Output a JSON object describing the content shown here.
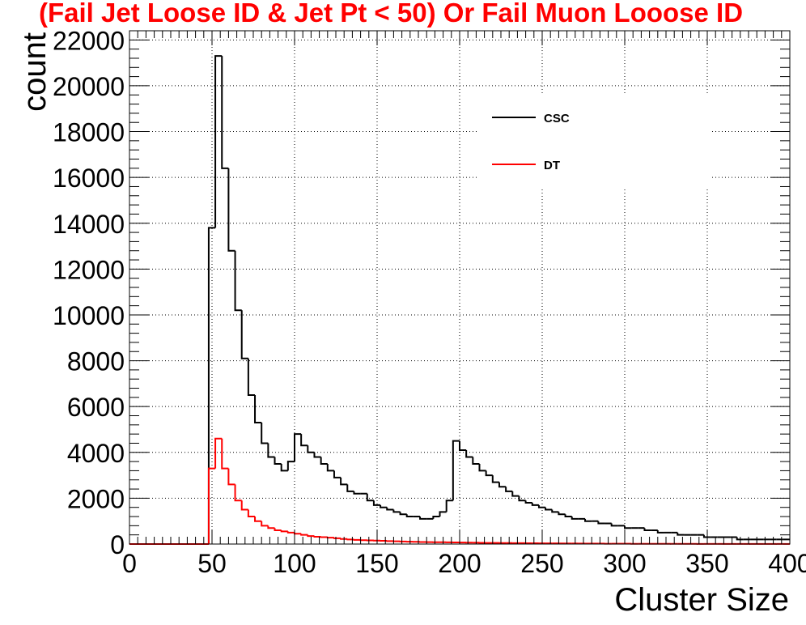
{
  "chart_data": {
    "type": "histogram",
    "title": "(Fail Jet Loose ID & Jet Pt < 50) Or Fail Muon Looose ID",
    "title_color": "#ff0000",
    "xlabel": "Cluster Size",
    "ylabel": "count",
    "xlim": [
      0,
      400
    ],
    "ylim": [
      0,
      22400
    ],
    "bin_width": 4,
    "bin_start": 0,
    "grid": true,
    "xticks": [
      0,
      50,
      100,
      150,
      200,
      250,
      300,
      350,
      400
    ],
    "yticks": [
      0,
      2000,
      4000,
      6000,
      8000,
      10000,
      12000,
      14000,
      16000,
      18000,
      20000,
      22000
    ],
    "legend_position": "top-right",
    "series": [
      {
        "name": "CSC",
        "color": "#000000",
        "values": [
          0,
          0,
          0,
          0,
          0,
          0,
          0,
          0,
          0,
          0,
          0,
          0,
          13800,
          21300,
          16400,
          12800,
          10200,
          8100,
          6500,
          5300,
          4400,
          3800,
          3500,
          3200,
          3600,
          4800,
          4300,
          4000,
          3800,
          3500,
          3200,
          2900,
          2600,
          2300,
          2200,
          2200,
          1900,
          1700,
          1600,
          1500,
          1400,
          1300,
          1200,
          1200,
          1100,
          1100,
          1200,
          1400,
          1900,
          4500,
          4100,
          3800,
          3500,
          3200,
          3000,
          2700,
          2500,
          2300,
          2100,
          1900,
          1800,
          1700,
          1600,
          1500,
          1400,
          1300,
          1200,
          1100,
          1100,
          1000,
          1000,
          900,
          900,
          800,
          800,
          700,
          700,
          700,
          600,
          600,
          500,
          500,
          500,
          400,
          400,
          400,
          400,
          300,
          300,
          300,
          300,
          300,
          200,
          200,
          200,
          200,
          200,
          200,
          200,
          200
        ]
      },
      {
        "name": "DT",
        "color": "#ff0000",
        "values": [
          0,
          0,
          0,
          0,
          0,
          0,
          0,
          0,
          0,
          0,
          0,
          0,
          3300,
          4600,
          3300,
          2600,
          1900,
          1500,
          1200,
          1000,
          800,
          700,
          600,
          550,
          500,
          450,
          400,
          350,
          320,
          300,
          280,
          250,
          220,
          200,
          180,
          170,
          160,
          150,
          140,
          130,
          120,
          110,
          100,
          95,
          90,
          85,
          80,
          80,
          75,
          70,
          65,
          60,
          60,
          55,
          50,
          50,
          45,
          45,
          40,
          40,
          35,
          35,
          30,
          30,
          30,
          25,
          25,
          25,
          20,
          20,
          20,
          20,
          15,
          15,
          15,
          15,
          10,
          10,
          10,
          10,
          10,
          10,
          8,
          8,
          8,
          8,
          6,
          6,
          6,
          6,
          5,
          5,
          5,
          5,
          4,
          4,
          4,
          4,
          3,
          3
        ]
      }
    ]
  }
}
